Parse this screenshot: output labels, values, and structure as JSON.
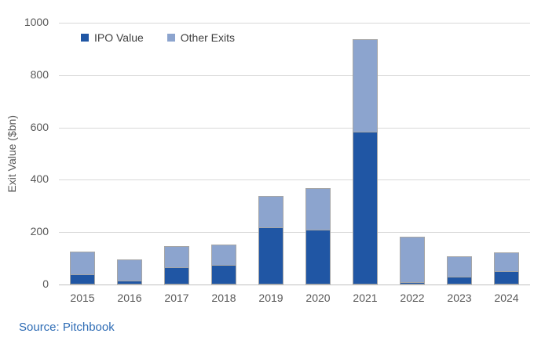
{
  "chart_data": {
    "type": "bar",
    "stacked": true,
    "title": "",
    "categories": [
      "2015",
      "2016",
      "2017",
      "2018",
      "2019",
      "2020",
      "2021",
      "2022",
      "2023",
      "2024"
    ],
    "series": [
      {
        "name": "IPO Value",
        "color": "#2056A4",
        "values": [
          40,
          15,
          65,
          75,
          220,
          210,
          585,
          10,
          30,
          50
        ]
      },
      {
        "name": "Other Exits",
        "color": "#8CA4CE",
        "values": [
          90,
          85,
          85,
          80,
          120,
          160,
          355,
          175,
          80,
          75
        ]
      }
    ],
    "xlabel": "",
    "ylabel": "Exit Value ($bn)",
    "ylim": [
      0,
      1000
    ],
    "yticks": [
      0,
      200,
      400,
      600,
      800,
      1000
    ],
    "grid": true,
    "legend_position": "top-left-inside",
    "source": "Source: Pitchbook"
  },
  "colors": {
    "ipo_value": "#2056A4",
    "other_exits": "#8CA4CE",
    "bar_border": "#A6A6A6",
    "gridline": "#D9D9D9",
    "axis_line": "#BFBFBF",
    "tick_text": "#595959",
    "legend_text": "#3F3F3F",
    "source_text": "#2E6CB5"
  }
}
